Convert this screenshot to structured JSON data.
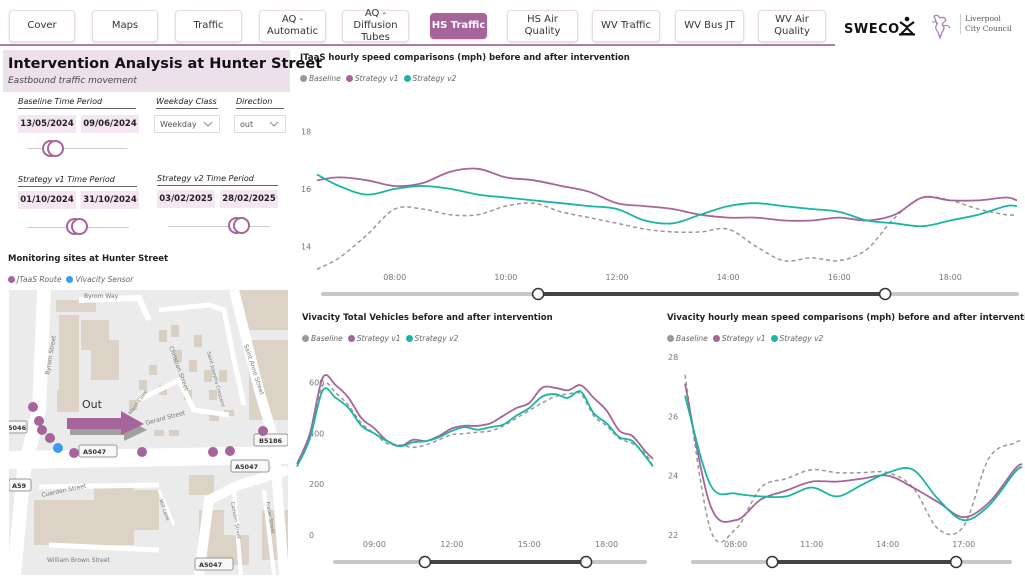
{
  "nav": {
    "tabs": [
      {
        "label": "Cover",
        "active": false
      },
      {
        "label": "Maps",
        "active": false
      },
      {
        "label": "Traffic",
        "active": false
      },
      {
        "label": "AQ - Automatic",
        "active": false
      },
      {
        "label": "AQ - Diffusion Tubes",
        "active": false
      },
      {
        "label": "HS Traffic",
        "active": true
      },
      {
        "label": "HS Air Quality",
        "active": false
      },
      {
        "label": "WV Traffic",
        "active": false
      },
      {
        "label": "WV Bus JT",
        "active": false
      },
      {
        "label": "WV Air Quality",
        "active": false
      }
    ],
    "logos": {
      "sweco": "SWECO",
      "council_line1": "Liverpool",
      "council_line2": "City Council"
    }
  },
  "header": {
    "title": "Intervention Analysis at Hunter Street",
    "subtitle": "Eastbound traffic movement"
  },
  "filters": {
    "baseline": {
      "label": "Baseline Time Period",
      "start": "13/05/2024",
      "end": "09/06/2024"
    },
    "weekday_class": {
      "label": "Weekday Class",
      "value": "Weekday"
    },
    "direction": {
      "label": "Direction",
      "value": "out"
    },
    "strategy_v1": {
      "label": "Strategy v1 Time Period",
      "start": "01/10/2024",
      "end": "31/10/2024"
    },
    "strategy_v2": {
      "label": "Strategy v2 Time Period",
      "start": "03/02/2025",
      "end": "28/02/2025"
    }
  },
  "map": {
    "title": "Monitoring sites at Hunter Street",
    "legend": [
      {
        "label": "JTaaS Route",
        "color": "#a5659b"
      },
      {
        "label": "Vivacity Sensor",
        "color": "#3d9be9"
      }
    ],
    "direction_label": "Out",
    "street_labels": [
      "Byrom Street",
      "Christian Street",
      "Saint Josephs Crescent",
      "Saint Anne Street",
      "Gerard Street",
      "Mann Close",
      "Cuerden Street",
      "Mill Lane",
      "Camden Street",
      "Fraser Street",
      "William Brown Street",
      "Byrom Way"
    ],
    "road_badges": [
      "A5047",
      "B5186",
      "A5047",
      "A59",
      "5046",
      "A5047"
    ]
  },
  "colors": {
    "baseline": "#999999",
    "strategy_v1": "#a5659b",
    "strategy_v2": "#1ab5a5",
    "accent": "#a5659b"
  },
  "chart_data": [
    {
      "id": "jtaas",
      "type": "line",
      "title": "JTaaS hourly speed comparisons (mph) before and after intervention",
      "legend": [
        "Baseline",
        "Strategy v1",
        "Strategy v2"
      ],
      "xlabel": "",
      "ylabel": "",
      "x_ticks": [
        "08:00",
        "10:00",
        "12:00",
        "14:00",
        "16:00",
        "18:00"
      ],
      "y_ticks": [
        14,
        16,
        18
      ],
      "xlim": [
        6.6,
        19.2
      ],
      "ylim": [
        13.0,
        18.4
      ],
      "x": [
        6.6,
        7.0,
        7.5,
        8.0,
        8.5,
        9.0,
        9.5,
        10.0,
        10.5,
        11.0,
        11.5,
        12.0,
        12.5,
        13.0,
        13.5,
        14.0,
        14.5,
        15.0,
        15.5,
        16.0,
        16.5,
        17.0,
        17.5,
        18.0,
        18.5,
        19.0,
        19.2
      ],
      "series": [
        {
          "name": "Baseline",
          "values": [
            13.2,
            13.6,
            14.4,
            15.3,
            15.3,
            15.1,
            15.1,
            15.4,
            15.5,
            15.2,
            15.0,
            14.8,
            14.6,
            14.5,
            14.5,
            14.6,
            14.0,
            13.5,
            13.6,
            13.5,
            13.9,
            15.0,
            15.7,
            15.6,
            15.3,
            15.1,
            15.1
          ]
        },
        {
          "name": "Strategy v1",
          "values": [
            16.3,
            16.4,
            16.3,
            16.1,
            16.2,
            16.6,
            16.7,
            16.4,
            16.3,
            16.1,
            15.9,
            15.5,
            15.4,
            15.3,
            15.1,
            15.0,
            15.0,
            14.9,
            14.9,
            15.0,
            14.9,
            15.1,
            15.7,
            15.6,
            15.6,
            15.7,
            15.6
          ]
        },
        {
          "name": "Strategy v2",
          "values": [
            16.5,
            16.1,
            15.8,
            16.0,
            16.1,
            16.0,
            15.8,
            15.7,
            15.6,
            15.5,
            15.4,
            15.3,
            14.9,
            14.8,
            15.1,
            15.4,
            15.5,
            15.4,
            15.3,
            15.2,
            14.9,
            14.8,
            14.7,
            14.9,
            15.1,
            15.4,
            15.4
          ]
        }
      ],
      "range_slider": {
        "start_fraction": 0.31,
        "end_fraction": 0.81
      }
    },
    {
      "id": "vivacity_volume",
      "type": "line",
      "title": "Vivacity Total Vehicles before and after intervention",
      "legend": [
        "Baseline",
        "Strategy v1",
        "Strategy v2"
      ],
      "xlabel": "",
      "ylabel": "",
      "x_ticks": [
        "09:00",
        "12:00",
        "15:00",
        "18:00"
      ],
      "y_ticks": [
        0,
        200,
        400,
        600
      ],
      "xlim": [
        6.0,
        19.8
      ],
      "ylim": [
        0,
        650
      ],
      "x": [
        6.0,
        6.5,
        7.0,
        7.5,
        8.0,
        8.5,
        9.0,
        9.5,
        10.0,
        10.5,
        11.0,
        11.5,
        12.0,
        12.5,
        13.0,
        13.5,
        14.0,
        14.5,
        15.0,
        15.5,
        16.0,
        16.5,
        17.0,
        17.5,
        18.0,
        18.5,
        19.0,
        19.5,
        19.8
      ],
      "series": [
        {
          "name": "Baseline",
          "values": [
            270,
            380,
            590,
            560,
            510,
            440,
            400,
            360,
            355,
            345,
            355,
            375,
            395,
            400,
            405,
            410,
            430,
            460,
            490,
            520,
            545,
            555,
            555,
            470,
            430,
            380,
            360,
            320,
            270
          ]
        },
        {
          "name": "Strategy v1",
          "values": [
            280,
            400,
            620,
            590,
            540,
            460,
            420,
            370,
            350,
            375,
            370,
            390,
            420,
            430,
            430,
            440,
            470,
            500,
            520,
            580,
            580,
            570,
            590,
            540,
            490,
            410,
            390,
            330,
            300
          ]
        },
        {
          "name": "Strategy v2",
          "values": [
            270,
            380,
            570,
            540,
            500,
            430,
            400,
            370,
            350,
            365,
            370,
            385,
            410,
            425,
            415,
            425,
            435,
            470,
            500,
            545,
            555,
            540,
            565,
            480,
            440,
            385,
            370,
            310,
            270
          ]
        }
      ],
      "range_slider": {
        "start_fraction": 0.29,
        "end_fraction": 0.81
      }
    },
    {
      "id": "vivacity_speed",
      "type": "line",
      "title": "Vivacity hourly mean speed comparisons (mph) before and after intervention",
      "legend": [
        "Baseline",
        "Strategy v1",
        "Strategy v2"
      ],
      "xlabel": "",
      "ylabel": "",
      "x_ticks": [
        "08:00",
        "11:00",
        "14:00",
        "17:00"
      ],
      "y_ticks": [
        22,
        24,
        26,
        28
      ],
      "xlim": [
        6.0,
        19.3
      ],
      "ylim": [
        22,
        28
      ],
      "x": [
        6,
        7,
        8,
        9,
        10,
        11,
        12,
        13,
        14,
        15,
        16,
        17,
        18,
        19,
        19.3
      ],
      "series": [
        {
          "name": "Baseline",
          "values": [
            27.4,
            22.2,
            22.2,
            23.6,
            23.9,
            24.2,
            24.1,
            24.1,
            24.1,
            23.6,
            22.2,
            22.3,
            24.6,
            25.1,
            25.2
          ]
        },
        {
          "name": "Strategy v1",
          "values": [
            27.1,
            23.0,
            22.5,
            23.2,
            23.5,
            23.8,
            23.8,
            23.9,
            24.0,
            23.6,
            23.1,
            22.6,
            23.1,
            24.2,
            24.4
          ]
        },
        {
          "name": "Strategy v2",
          "values": [
            26.7,
            23.7,
            23.4,
            23.3,
            23.3,
            23.6,
            23.3,
            23.7,
            24.1,
            24.2,
            23.2,
            22.5,
            23.0,
            24.1,
            24.3
          ]
        }
      ],
      "range_slider": {
        "start_fraction": 0.25,
        "end_fraction": 0.83
      }
    }
  ]
}
